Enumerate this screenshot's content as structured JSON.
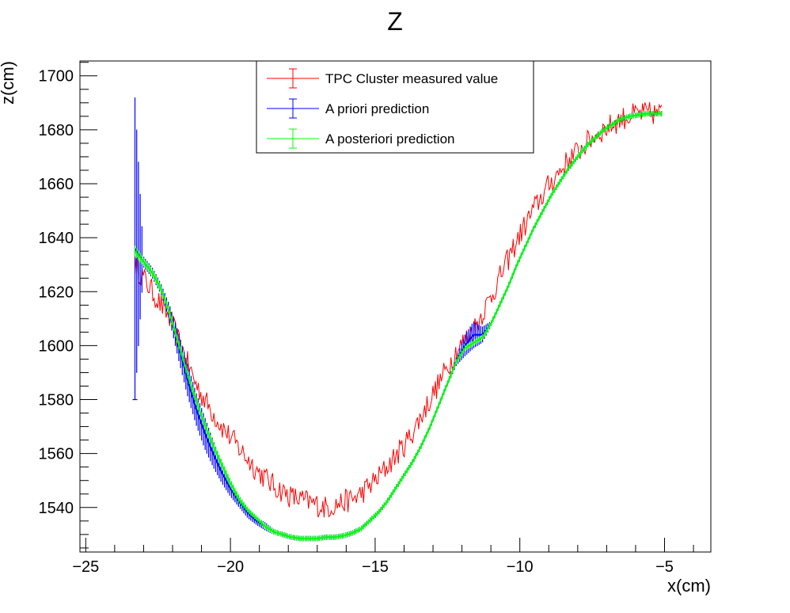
{
  "chart_data": {
    "type": "line",
    "title": "Z",
    "xlabel": "x(cm)",
    "ylabel": "z(cm)",
    "xlim": [
      -25.2,
      -3.4
    ],
    "ylim": [
      1523.5,
      1705.5
    ],
    "xticks": [
      -25,
      -20,
      -15,
      -10,
      -5
    ],
    "yticks": [
      1540,
      1560,
      1580,
      1600,
      1620,
      1640,
      1660,
      1680,
      1700
    ],
    "tick_labels_x": [
      "−25",
      "−20",
      "−15",
      "−10",
      "−5"
    ],
    "tick_labels_y": [
      "1540",
      "1560",
      "1580",
      "1600",
      "1620",
      "1640",
      "1660",
      "1680",
      "1700"
    ],
    "grid": false,
    "legend_position": "top-center",
    "series": [
      {
        "name": "TPC Cluster measured value",
        "color": "#ff0000",
        "style": "line-with-noise",
        "x": [
          -23.3,
          -23.0,
          -22.7,
          -22.4,
          -22.1,
          -21.8,
          -21.5,
          -21.2,
          -20.9,
          -20.6,
          -20.3,
          -20.0,
          -19.7,
          -19.4,
          -19.1,
          -18.8,
          -18.5,
          -18.2,
          -17.9,
          -17.6,
          -17.3,
          -17.0,
          -16.7,
          -16.4,
          -16.1,
          -15.8,
          -15.5,
          -15.2,
          -14.9,
          -14.6,
          -14.3,
          -14.0,
          -13.7,
          -13.4,
          -13.1,
          -12.8,
          -12.5,
          -12.2,
          -11.9,
          -11.6,
          -11.3,
          -11.0,
          -10.7,
          -10.4,
          -10.1,
          -9.8,
          -9.5,
          -9.2,
          -8.9,
          -8.6,
          -8.3,
          -8.0,
          -7.7,
          -7.4,
          -7.1,
          -6.8,
          -6.5,
          -6.2,
          -5.9,
          -5.6,
          -5.3,
          -5.1
        ],
        "y": [
          1630,
          1625,
          1620,
          1615,
          1610,
          1602,
          1594,
          1586,
          1580,
          1575,
          1570,
          1566,
          1562,
          1558,
          1554,
          1551,
          1548,
          1546,
          1544,
          1543,
          1542,
          1541,
          1540,
          1541,
          1542,
          1543,
          1545,
          1548,
          1551,
          1555,
          1559,
          1563,
          1568,
          1574,
          1580,
          1586,
          1592,
          1598,
          1602,
          1606,
          1612,
          1618,
          1625,
          1632,
          1639,
          1645,
          1651,
          1656,
          1661,
          1665,
          1669,
          1672,
          1675,
          1678,
          1680,
          1682,
          1684,
          1685,
          1686,
          1686,
          1686,
          1686
        ]
      },
      {
        "name": "A priori prediction",
        "color": "#0000ff",
        "style": "errorbar",
        "x": [
          -23.3,
          -23.0,
          -22.7,
          -22.4,
          -22.1,
          -21.8,
          -21.5,
          -21.2,
          -20.9,
          -20.6,
          -20.3,
          -20.0,
          -19.7,
          -19.4,
          -19.1,
          -18.8,
          -18.5,
          -18.2,
          -17.9,
          -17.6,
          -17.3,
          -17.0,
          -16.7,
          -16.4,
          -16.1,
          -15.8,
          -15.5,
          -15.2,
          -14.9,
          -14.6,
          -14.3,
          -14.0,
          -13.7,
          -13.4,
          -13.1,
          -12.8,
          -12.5,
          -12.2,
          -11.9,
          -11.6,
          -11.3,
          -11.0,
          -10.7,
          -10.4,
          -10.1,
          -9.8,
          -9.5,
          -9.2,
          -8.9,
          -8.6,
          -8.3,
          -8.0,
          -7.7,
          -7.4,
          -7.1,
          -6.8,
          -6.5,
          -6.2,
          -5.9,
          -5.6,
          -5.3,
          -5.1
        ],
        "y": [
          1636,
          1631,
          1627,
          1621,
          1612,
          1600,
          1588,
          1577,
          1568,
          1560,
          1553,
          1547,
          1542,
          1538,
          1535,
          1533,
          1531,
          1530,
          1529,
          1528.5,
          1528.5,
          1528.5,
          1529,
          1529,
          1529.5,
          1530.5,
          1532,
          1535,
          1538,
          1542,
          1547,
          1552,
          1557,
          1563,
          1570,
          1578,
          1586,
          1594,
          1600,
          1604,
          1604,
          1608,
          1615,
          1622,
          1630,
          1637,
          1644,
          1650,
          1656,
          1661,
          1666,
          1670,
          1674,
          1677,
          1680,
          1682,
          1684,
          1685,
          1685.5,
          1686,
          1686,
          1686
        ],
        "yerr": [
          56,
          2,
          2,
          2,
          3,
          5,
          6,
          6,
          6,
          5,
          4,
          3,
          2,
          2,
          1.5,
          1.5,
          1,
          1,
          1,
          1,
          1,
          1,
          1,
          1,
          1,
          1,
          1,
          1,
          1,
          1,
          1,
          1,
          1,
          1,
          1,
          1,
          1,
          1.5,
          4,
          5,
          3,
          1,
          1,
          1,
          1,
          1,
          1,
          1,
          1,
          1,
          1,
          1,
          1,
          1,
          1,
          1,
          1,
          1,
          1,
          1,
          1,
          1
        ]
      },
      {
        "name": "A posteriori prediction",
        "color": "#00ff00",
        "style": "errorbar",
        "x": [
          -23.3,
          -23.0,
          -22.7,
          -22.4,
          -22.1,
          -21.8,
          -21.5,
          -21.2,
          -20.9,
          -20.6,
          -20.3,
          -20.0,
          -19.7,
          -19.4,
          -19.1,
          -18.8,
          -18.5,
          -18.2,
          -17.9,
          -17.6,
          -17.3,
          -17.0,
          -16.7,
          -16.4,
          -16.1,
          -15.8,
          -15.5,
          -15.2,
          -14.9,
          -14.6,
          -14.3,
          -14.0,
          -13.7,
          -13.4,
          -13.1,
          -12.8,
          -12.5,
          -12.2,
          -11.9,
          -11.6,
          -11.3,
          -11.0,
          -10.7,
          -10.4,
          -10.1,
          -9.8,
          -9.5,
          -9.2,
          -8.9,
          -8.6,
          -8.3,
          -8.0,
          -7.7,
          -7.4,
          -7.1,
          -6.8,
          -6.5,
          -6.2,
          -5.9,
          -5.6,
          -5.3,
          -5.1
        ],
        "y": [
          1635,
          1631,
          1627,
          1621,
          1612,
          1601,
          1590,
          1580,
          1571,
          1563,
          1556,
          1549,
          1543,
          1539,
          1536,
          1533,
          1531,
          1530,
          1529,
          1528.5,
          1528.5,
          1528.5,
          1529,
          1529,
          1529.5,
          1530.5,
          1532,
          1535,
          1538,
          1542,
          1547,
          1552,
          1557,
          1563,
          1570,
          1578,
          1586,
          1594,
          1599,
          1601,
          1603,
          1608,
          1615,
          1622,
          1630,
          1637,
          1644,
          1650,
          1656,
          1661,
          1666,
          1670,
          1674,
          1677,
          1680,
          1682,
          1684,
          1685,
          1685.5,
          1686,
          1686,
          1686
        ],
        "yerr": [
          2,
          1.5,
          1.5,
          1.5,
          1.5,
          1.5,
          1.5,
          1.5,
          1.5,
          1.5,
          1.5,
          1.5,
          1.5,
          1,
          1,
          1,
          1,
          1,
          1,
          1,
          1,
          1,
          1,
          1,
          1,
          1,
          1,
          1,
          1,
          1,
          1,
          1,
          1,
          1,
          1,
          1,
          1,
          1,
          1,
          1,
          1,
          1,
          1,
          1,
          1,
          1,
          1,
          1,
          1,
          1,
          1,
          1,
          1,
          1,
          1,
          1,
          1,
          1,
          1,
          1,
          1,
          1
        ]
      }
    ]
  }
}
